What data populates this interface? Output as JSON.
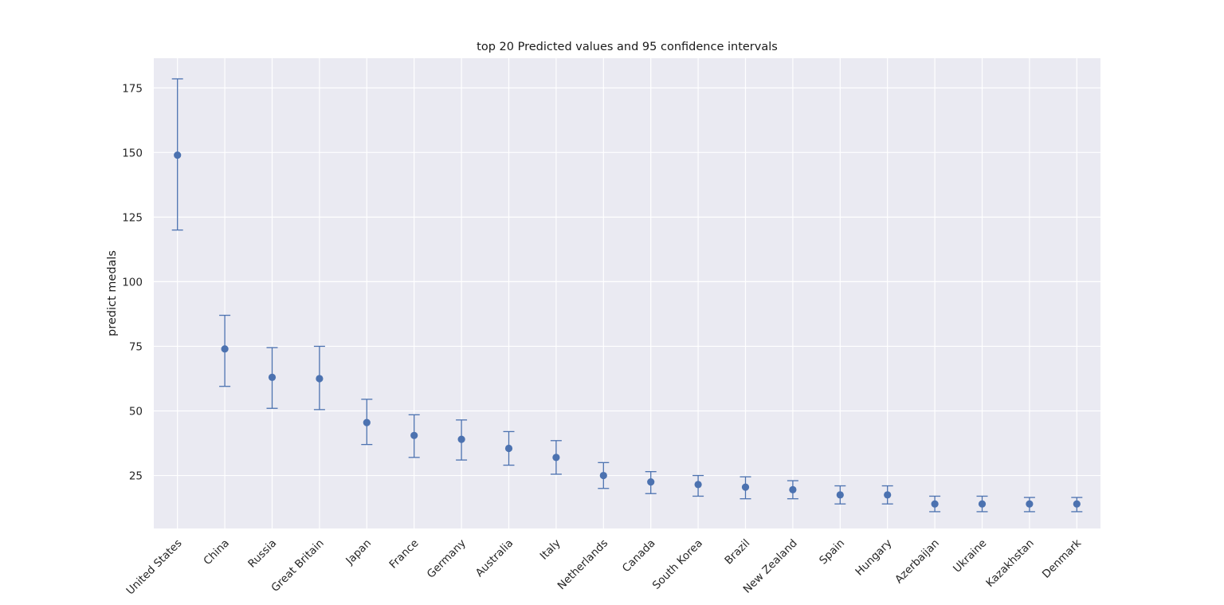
{
  "chart_data": {
    "type": "scatter",
    "title": "top 20 Predicted values and 95 confidence intervals",
    "xlabel": "",
    "ylabel": "predict medals",
    "categories": [
      "United States",
      "China",
      "Russia",
      "Great Britain",
      "Japan",
      "France",
      "Germany",
      "Australia",
      "Italy",
      "Netherlands",
      "Canada",
      "South Korea",
      "Brazil",
      "New Zealand",
      "Spain",
      "Hungary",
      "Azerbaijan",
      "Ukraine",
      "Kazakhstan",
      "Denmark"
    ],
    "values": [
      149,
      74,
      63,
      62.5,
      45.5,
      40.5,
      39,
      35.5,
      32,
      25,
      22.5,
      21.5,
      20.5,
      19.5,
      17.5,
      17.5,
      14,
      14,
      14,
      14
    ],
    "ci_lower": [
      120,
      59.5,
      51,
      50.5,
      37,
      32,
      31,
      29,
      25.5,
      20,
      18,
      17,
      16,
      16,
      14,
      14,
      11,
      11,
      11,
      11
    ],
    "ci_upper": [
      178.5,
      87,
      74.5,
      75,
      54.5,
      48.5,
      46.5,
      42,
      38.5,
      30,
      26.5,
      25,
      24.5,
      23,
      21,
      21,
      17,
      17,
      16.5,
      16.5
    ],
    "y_ticks": [
      25,
      50,
      75,
      100,
      125,
      150,
      175
    ],
    "ylim": [
      4.5,
      186.5
    ],
    "grid": true,
    "colors": {
      "marker": "#4c72b0",
      "background": "#eaeaf2",
      "grid": "#ffffff"
    }
  }
}
